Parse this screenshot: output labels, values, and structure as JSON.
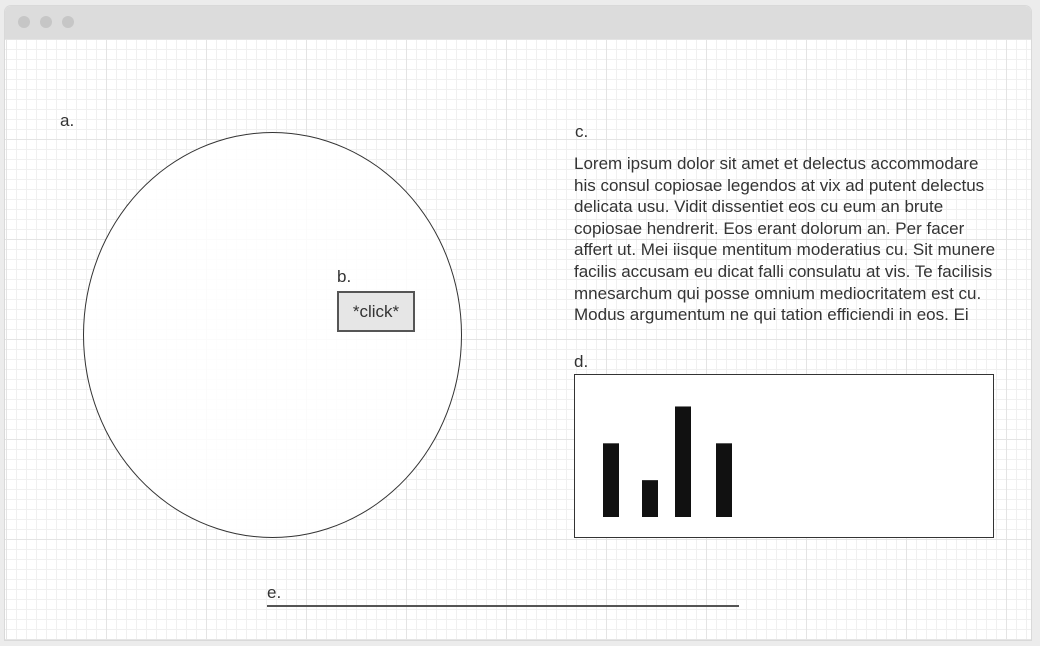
{
  "labels": {
    "a": "a.",
    "b": "b.",
    "c": "c.",
    "d": "d.",
    "e": "e."
  },
  "button": {
    "label": "*click*"
  },
  "paragraph": {
    "text": "Lorem ipsum dolor sit amet et delectus accommodare his consul copiosae legendos at vix ad putent delectus delicata usu. Vidit dissentiet eos cu eum an brute copiosae hendrerit. Eos erant dolorum an. Per facer affert ut. Mei iisque mentitum moderatius cu. Sit munere facilis accusam eu dicat falli consulatu at vis. Te facilisis mnesarchum qui posse omnium mediocritatem est cu. Modus argumentum ne qui tation efficiendi in eos. Ei"
  },
  "chart_data": {
    "type": "bar",
    "values": [
      2,
      1,
      3,
      2
    ],
    "ylim": [
      0,
      3.8
    ],
    "grid": false,
    "bar_color": "#111111"
  },
  "colors": {
    "titlebar": "#dcdcdc",
    "traffic_dot": "#c6c6c6",
    "grid_major": "#e4e4e4",
    "grid_minor": "#f0f0f0",
    "stroke": "#333333",
    "button_fill": "#e6e6e6"
  }
}
